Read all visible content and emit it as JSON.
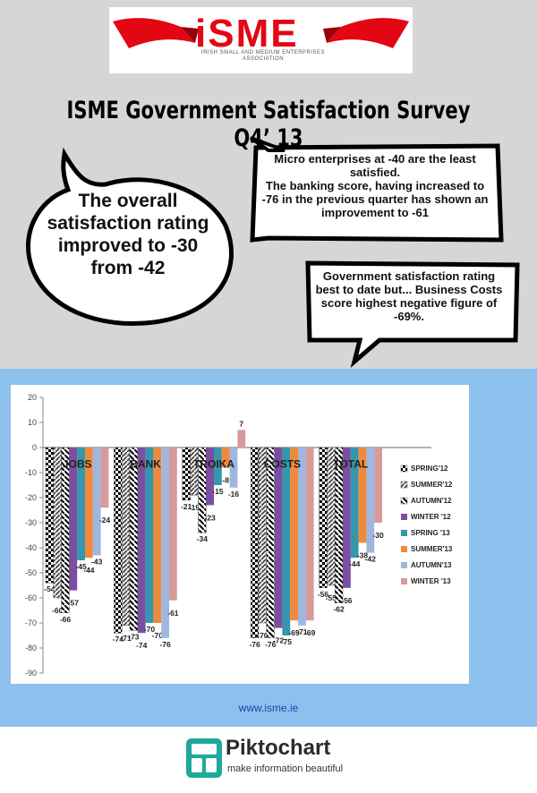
{
  "logo": {
    "text": "iSME",
    "subtitle": "IRISH SMALL AND MEDIUM ENTERPRISES ASSOCIATION"
  },
  "title": "ISME Government Satisfaction Survey Q4’ 13",
  "callouts": {
    "oval": "The overall satisfaction rating improved to -30 from -42",
    "box1": "Micro enterprises at -40 are the least satisfied.\nThe banking score, having increased to -76 in the previous quarter has shown an improvement to -61",
    "box2": "Government satisfaction rating best to date but... Business Costs score highest negative figure of -69%."
  },
  "url": "www.isme.ie",
  "footer": {
    "brand": "Piktochart",
    "tagline": "make information beautiful"
  },
  "colors": {
    "background_top": "#d6d6d6",
    "chart_band": "#8ec0ee",
    "logo_red": "#e30613",
    "url": "#1a45b0"
  },
  "chart_data": {
    "type": "bar",
    "title": "",
    "categories": [
      "JOBS",
      "BANK",
      "TROIKA",
      "COSTS",
      "TOTAL"
    ],
    "ylim": [
      -90,
      20
    ],
    "yticks": [
      20,
      10,
      0,
      -10,
      -20,
      -30,
      -40,
      -50,
      -60,
      -70,
      -80,
      -90
    ],
    "grid": false,
    "legend_position": "right",
    "series": [
      {
        "name": "SPRING'12",
        "color": "#000000",
        "pattern": "checker",
        "values": [
          -54,
          -74,
          -21,
          -76,
          -56
        ]
      },
      {
        "name": "SUMMER'12",
        "color": "#555555",
        "pattern": "hatch",
        "values": [
          -60,
          -71,
          -19,
          -70,
          -55
        ]
      },
      {
        "name": "AUTUMN'12",
        "color": "#000000",
        "pattern": "diag",
        "values": [
          -66,
          -73,
          -34,
          -76,
          -62
        ]
      },
      {
        "name": "WINTER '12",
        "color": "#7b4ea0",
        "pattern": "solid",
        "values": [
          -57,
          -74,
          -23,
          -72,
          -56
        ]
      },
      {
        "name": "SPRING '13",
        "color": "#3597ad",
        "pattern": "solid",
        "values": [
          -45,
          -70,
          -15,
          -75,
          -44
        ]
      },
      {
        "name": "SUMMER'13",
        "color": "#f08a3a",
        "pattern": "solid",
        "values": [
          -44,
          -70,
          -8,
          -69,
          -38
        ]
      },
      {
        "name": "AUTUMN'13",
        "color": "#9fb6df",
        "pattern": "solid",
        "values": [
          -43,
          -76,
          -16,
          -71,
          -42
        ]
      },
      {
        "name": "WINTER '13",
        "color": "#d79a9a",
        "pattern": "solid",
        "values": [
          -24,
          -61,
          7,
          -69,
          -30
        ]
      }
    ]
  }
}
